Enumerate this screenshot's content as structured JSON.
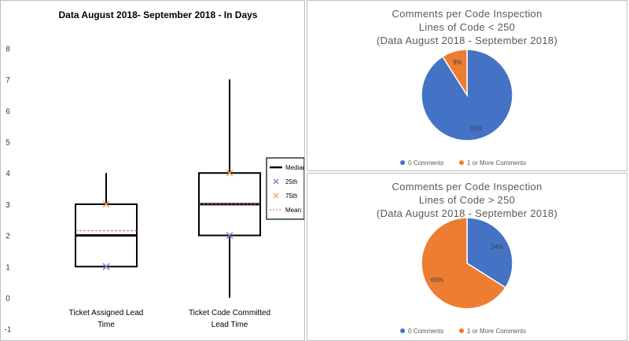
{
  "chart_data": [
    {
      "type": "box",
      "title": "Data August 2018- September 2018 - In Days",
      "ylim": [
        -1,
        8
      ],
      "yticks": [
        -1,
        0,
        1,
        2,
        3,
        4,
        5,
        6,
        7,
        8
      ],
      "categories": [
        "Ticket Assigned Lead Time",
        "Ticket Code Committed Lead Time"
      ],
      "category_lines": [
        [
          "Ticket Assigned Lead",
          "Time"
        ],
        [
          "Ticket Code Committed",
          "Lead Time"
        ]
      ],
      "boxes": [
        {
          "min": 1,
          "q1": 1,
          "median": 2,
          "q3": 3,
          "max": 4,
          "p25": 1,
          "p75": 3,
          "mean": 2.15
        },
        {
          "min": 0,
          "q1": 2,
          "median": 3,
          "q3": 4,
          "max": 7,
          "p25": 2,
          "p75": 4,
          "mean": 3
        }
      ],
      "legend": {
        "position": "right",
        "items": [
          {
            "label": "Median",
            "marker": "line",
            "color": "#000000"
          },
          {
            "label": "25th",
            "marker": "x",
            "color": "#7b7fd6"
          },
          {
            "label": "75th",
            "marker": "x",
            "color": "#f0a45c"
          },
          {
            "label": "Mean",
            "marker": "dashed",
            "color": "#e05a5a"
          }
        ]
      }
    },
    {
      "type": "pie",
      "title_lines": [
        "Comments per Code Inspection",
        "Lines of Code < 250",
        "(Data August 2018 - September 2018)"
      ],
      "slices": [
        {
          "name": "0 Comments",
          "value": 91,
          "label": "91%",
          "color": "#4472c4"
        },
        {
          "name": "1 or More Comments",
          "value": 9,
          "label": "9%",
          "color": "#ed7d31"
        }
      ],
      "legend_position": "bottom"
    },
    {
      "type": "pie",
      "title_lines": [
        "Comments per Code Inspection",
        "Lines of Code > 250",
        "(Data August 2018 - September 2018)"
      ],
      "slices": [
        {
          "name": "0 Comments",
          "value": 34,
          "label": "34%",
          "color": "#4472c4"
        },
        {
          "name": "1 or More Comments",
          "value": 66,
          "label": "66%",
          "color": "#ed7d31"
        }
      ],
      "legend_position": "bottom"
    }
  ]
}
